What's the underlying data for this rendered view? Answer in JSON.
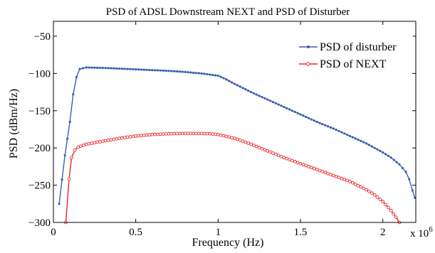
{
  "chart_data": {
    "type": "line",
    "title": "PSD of ADSL Downstream NEXT and PSD of Disturber",
    "xlabel": "Frequency (Hz)",
    "ylabel": "PSD (dBm/Hz)",
    "x_exponent_label": "x 10",
    "x_exponent_power": "6",
    "xlim": [
      0,
      2.2
    ],
    "ylim": [
      -300,
      -30
    ],
    "xticks": [
      0,
      0.5,
      1,
      1.5,
      2
    ],
    "xtick_labels": [
      "0",
      "0.5",
      "1",
      "1.5",
      "2"
    ],
    "yticks": [
      -300,
      -250,
      -200,
      -150,
      -100,
      -50
    ],
    "ytick_labels": [
      "−300",
      "−250",
      "−200",
      "−150",
      "−100",
      "−50"
    ],
    "grid": false,
    "legend_position": "top-right",
    "series": [
      {
        "name": "PSD of disturber",
        "color": "#3a5fb4",
        "marker": "dot",
        "x": [
          0.035,
          0.07,
          0.1,
          0.12,
          0.14,
          0.16,
          0.2,
          0.3,
          0.4,
          0.5,
          0.6,
          0.7,
          0.8,
          0.9,
          1.0,
          1.05,
          1.1,
          1.2,
          1.3,
          1.4,
          1.5,
          1.6,
          1.7,
          1.8,
          1.9,
          2.0,
          2.05,
          2.1,
          2.14,
          2.16,
          2.18,
          2.195
        ],
        "y": [
          -275,
          -210,
          -165,
          -128,
          -105,
          -94,
          -92,
          -92.5,
          -93.5,
          -94.5,
          -95.5,
          -96.5,
          -98,
          -100,
          -103,
          -108,
          -114,
          -125,
          -135,
          -145,
          -155,
          -165,
          -174,
          -184,
          -194,
          -206,
          -213,
          -222,
          -232,
          -242,
          -257,
          -267
        ]
      },
      {
        "name": "PSD of NEXT",
        "color": "#e8262a",
        "marker": "circle",
        "x": [
          0.075,
          0.095,
          0.11,
          0.13,
          0.15,
          0.2,
          0.3,
          0.4,
          0.5,
          0.6,
          0.7,
          0.8,
          0.9,
          0.95,
          1.0,
          1.1,
          1.2,
          1.3,
          1.4,
          1.5,
          1.6,
          1.7,
          1.8,
          1.9,
          1.95,
          2.0,
          2.05,
          2.08,
          2.1
        ],
        "y": [
          -300,
          -242,
          -213,
          -203,
          -199,
          -195,
          -191,
          -187,
          -184,
          -182,
          -181,
          -180.5,
          -180.5,
          -181,
          -182,
          -187,
          -195,
          -204,
          -213,
          -221,
          -229,
          -237,
          -245,
          -256,
          -263,
          -272,
          -284,
          -293,
          -300
        ]
      }
    ]
  }
}
